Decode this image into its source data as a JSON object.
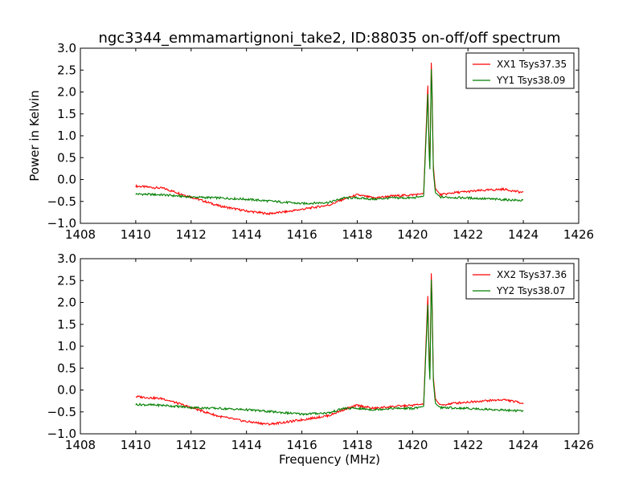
{
  "figure": {
    "title": "ngc3344_emmamartignoni_take2, ID:88035 on-off/off spectrum"
  },
  "chart_data": [
    {
      "type": "line",
      "title": "ngc3344_emmamartignoni_take2, ID:88035 on-off/off spectrum",
      "xlabel": "",
      "ylabel": "Power in Kelvin",
      "xlim": [
        1408,
        1426
      ],
      "ylim": [
        -1.0,
        3.0
      ],
      "xticks": [
        "1408",
        "1410",
        "1412",
        "1414",
        "1416",
        "1418",
        "1420",
        "1422",
        "1424",
        "1426"
      ],
      "yticks": [
        "−1.0",
        "−0.5",
        "0.0",
        "0.5",
        "1.0",
        "1.5",
        "2.0",
        "2.5",
        "3.0"
      ],
      "grid": false,
      "legend_position": "top-right",
      "series": [
        {
          "name": "XX1 Tsys37.35",
          "color": "#ff0000",
          "x": [
            1410.0,
            1411.0,
            1412.0,
            1413.0,
            1414.0,
            1414.8,
            1415.5,
            1416.3,
            1417.0,
            1417.5,
            1418.0,
            1418.6,
            1419.2,
            1420.0,
            1420.4,
            1420.55,
            1420.62,
            1420.68,
            1420.75,
            1420.82,
            1421.0,
            1421.5,
            1422.5,
            1423.3,
            1424.0
          ],
          "y": [
            -0.15,
            -0.2,
            -0.4,
            -0.6,
            -0.72,
            -0.78,
            -0.73,
            -0.65,
            -0.58,
            -0.45,
            -0.35,
            -0.42,
            -0.38,
            -0.35,
            -0.32,
            2.15,
            0.05,
            2.9,
            0.3,
            -0.2,
            -0.35,
            -0.3,
            -0.25,
            -0.22,
            -0.3
          ]
        },
        {
          "name": "YY1 Tsys38.09",
          "color": "#007f00",
          "x": [
            1410.0,
            1411.0,
            1412.0,
            1413.0,
            1414.0,
            1415.0,
            1416.0,
            1417.0,
            1417.5,
            1418.0,
            1418.6,
            1419.2,
            1420.0,
            1420.4,
            1420.55,
            1420.62,
            1420.68,
            1420.75,
            1420.82,
            1421.0,
            1422.0,
            1423.0,
            1424.0
          ],
          "y": [
            -0.33,
            -0.35,
            -0.4,
            -0.42,
            -0.45,
            -0.5,
            -0.55,
            -0.52,
            -0.42,
            -0.42,
            -0.45,
            -0.42,
            -0.42,
            -0.38,
            1.95,
            0.0,
            2.75,
            0.2,
            -0.3,
            -0.4,
            -0.42,
            -0.45,
            -0.48
          ]
        }
      ]
    },
    {
      "type": "line",
      "title": "",
      "xlabel": "Frequency (MHz)",
      "ylabel": "",
      "xlim": [
        1408,
        1426
      ],
      "ylim": [
        -1.0,
        3.0
      ],
      "xticks": [
        "1408",
        "1410",
        "1412",
        "1414",
        "1416",
        "1418",
        "1420",
        "1422",
        "1424",
        "1426"
      ],
      "yticks": [
        "−1.0",
        "−0.5",
        "0.0",
        "0.5",
        "1.0",
        "1.5",
        "2.0",
        "2.5",
        "3.0"
      ],
      "grid": false,
      "legend_position": "top-right",
      "series": [
        {
          "name": "XX2 Tsys37.36",
          "color": "#ff0000",
          "x": [
            1410.0,
            1411.0,
            1412.0,
            1413.0,
            1414.0,
            1414.8,
            1415.5,
            1416.3,
            1417.0,
            1417.5,
            1418.0,
            1418.6,
            1419.2,
            1420.0,
            1420.4,
            1420.55,
            1420.62,
            1420.68,
            1420.75,
            1420.82,
            1421.0,
            1421.5,
            1422.5,
            1423.3,
            1424.0
          ],
          "y": [
            -0.15,
            -0.2,
            -0.4,
            -0.6,
            -0.72,
            -0.78,
            -0.73,
            -0.65,
            -0.58,
            -0.45,
            -0.35,
            -0.42,
            -0.38,
            -0.35,
            -0.32,
            2.15,
            0.05,
            2.9,
            0.3,
            -0.2,
            -0.35,
            -0.3,
            -0.25,
            -0.22,
            -0.3
          ]
        },
        {
          "name": "YY2 Tsys38.07",
          "color": "#007f00",
          "x": [
            1410.0,
            1411.0,
            1412.0,
            1413.0,
            1414.0,
            1415.0,
            1416.0,
            1417.0,
            1417.5,
            1418.0,
            1418.6,
            1419.2,
            1420.0,
            1420.4,
            1420.55,
            1420.62,
            1420.68,
            1420.75,
            1420.82,
            1421.0,
            1422.0,
            1423.0,
            1424.0
          ],
          "y": [
            -0.33,
            -0.35,
            -0.4,
            -0.42,
            -0.45,
            -0.5,
            -0.55,
            -0.52,
            -0.42,
            -0.42,
            -0.45,
            -0.42,
            -0.42,
            -0.38,
            1.95,
            0.0,
            2.75,
            0.2,
            -0.3,
            -0.4,
            -0.42,
            -0.45,
            -0.48
          ]
        }
      ]
    }
  ]
}
